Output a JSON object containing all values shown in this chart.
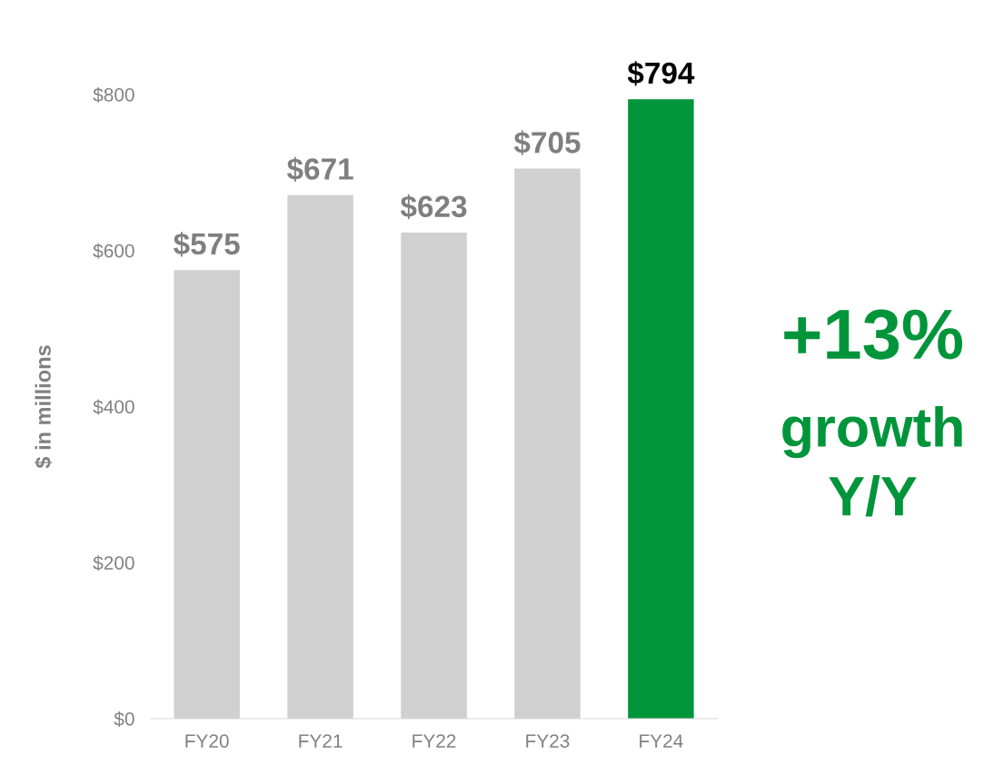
{
  "chart_data": {
    "type": "bar",
    "ylabel": "$ in millions",
    "categories": [
      "FY20",
      "FY21",
      "FY22",
      "FY23",
      "FY24"
    ],
    "values": [
      575,
      671,
      623,
      705,
      794
    ],
    "colors": [
      "#d0d0d0",
      "#d0d0d0",
      "#d0d0d0",
      "#d0d0d0",
      "#00953a"
    ],
    "value_labels": [
      "$575",
      "$671",
      "$623",
      "$705",
      "$794"
    ],
    "ylim": [
      0,
      800
    ],
    "yticks": [
      {
        "value": 0,
        "label": "$0"
      },
      {
        "value": 200,
        "label": "$200"
      },
      {
        "value": 400,
        "label": "$400"
      },
      {
        "value": 600,
        "label": "$600"
      },
      {
        "value": 800,
        "label": "$800"
      }
    ],
    "grid": false,
    "legend": false,
    "annotations": [
      "+13%",
      "growth",
      "Y/Y"
    ]
  }
}
